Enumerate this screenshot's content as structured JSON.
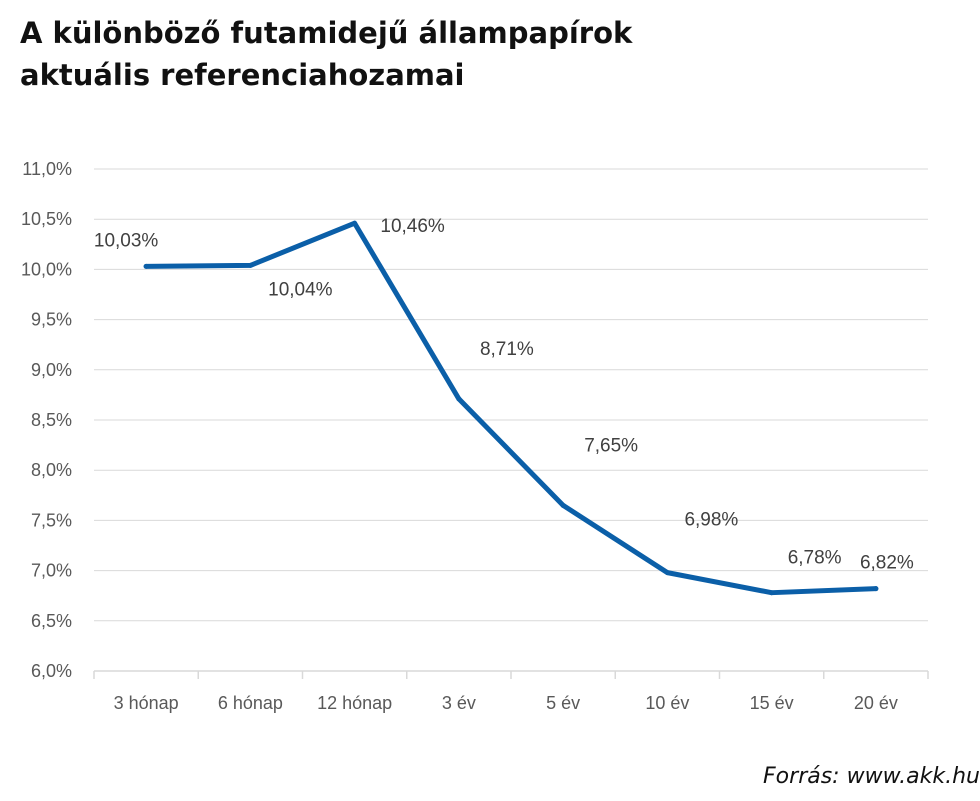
{
  "chart_data": {
    "type": "line",
    "title": [
      "A különböző futamidejű állampapírok",
      "aktuális referenciahozamai"
    ],
    "categories": [
      "3 hónap",
      "6 hónap",
      "12 hónap",
      "3 év",
      "5 év",
      "10 év",
      "15 év",
      "20 év"
    ],
    "series": [
      {
        "values": [
          10.03,
          10.04,
          10.46,
          8.71,
          7.65,
          6.98,
          6.78,
          6.82
        ],
        "labels": [
          "10,03%",
          "10,04%",
          "10,46%",
          "8,71%",
          "7,65%",
          "6,98%",
          "6,78%",
          "6,82%"
        ],
        "color": "#0b5fa8"
      }
    ],
    "ylim": [
      6.0,
      11.0
    ],
    "yticks": [
      6.0,
      6.5,
      7.0,
      7.5,
      8.0,
      8.5,
      9.0,
      9.5,
      10.0,
      10.5,
      11.0
    ],
    "ytick_labels": [
      "6,0%",
      "6,5%",
      "7,0%",
      "7,5%",
      "8,0%",
      "8,5%",
      "9,0%",
      "9,5%",
      "10,0%",
      "10,5%",
      "11,0%"
    ],
    "grid": true,
    "legend": "none",
    "gridline_color": "#d9d9d9"
  },
  "source_text": "Forrás: www.akk.hu"
}
